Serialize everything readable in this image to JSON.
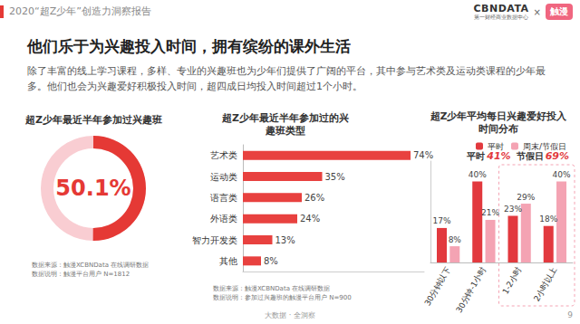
{
  "page": {
    "header": "2020“超Z少年”创造力洞察报告",
    "brand": {
      "name": "CBNDATA",
      "subtitle": "第一财经商业数据中心",
      "separator": "×",
      "partner": "触漫"
    },
    "title": "他们乐于为兴趣投入时间，拥有缤纷的课外生活",
    "paragraph": "除了丰富的线上学习课程，多样、专业的兴趣班也为少年们提供了广阔的平台，其中参与艺术类及运动类课程的少年最多。他们也会为兴趣爱好积极投入时间，超四成日均投入时间超过1个小时。",
    "footer": "大数据 · 全洞察",
    "page_number": "9"
  },
  "chart_data": [
    {
      "type": "gauge",
      "title": "超Z少年最近半年参加过兴趣班",
      "values": [
        50.1
      ],
      "value_labels": [
        "50.1%"
      ],
      "ylim": [
        0,
        100
      ],
      "color": "#e53935",
      "data_labels": true,
      "source": [
        "数据来源：触漫XCBNData 在线调研数据",
        "数据说明：触漫平台用户 N=1812"
      ]
    },
    {
      "type": "bar",
      "orientation": "horizontal",
      "title": "超Z少年最近半年参加过的兴趣班类型",
      "categories": [
        "艺术类",
        "运动类",
        "语言类",
        "外语类",
        "智力开发类",
        "其他"
      ],
      "values": [
        74,
        35,
        26,
        24,
        13,
        8
      ],
      "value_labels": [
        "74%",
        "35%",
        "26%",
        "24%",
        "13%",
        "8%"
      ],
      "xlim": [
        0,
        80
      ],
      "color": "#e8413f",
      "data_labels": true,
      "tick_labels": "y",
      "grid": false,
      "source": [
        "数据来源：触漫XCBNData 在线调研数据",
        "数据说明：参加过兴趣班的触漫平台用户 N=900"
      ]
    },
    {
      "type": "bar",
      "title": "超Z少年平均每日兴趣爱好投入时间分布",
      "categories": [
        "30分钟以下",
        "30分钟-1小时",
        "1-2小时",
        "2小时以上"
      ],
      "series": [
        {
          "name": "平时",
          "color": "#e2393e",
          "values": [
            17,
            40,
            23,
            18
          ],
          "value_labels": [
            "17%",
            "40%",
            "23%",
            "18%"
          ]
        },
        {
          "name": "周末/节假日",
          "color": "#f4a3b3",
          "values": [
            8,
            21,
            29,
            40
          ],
          "value_labels": [
            "8%",
            "21%",
            "29%",
            "40%"
          ]
        }
      ],
      "ylim": [
        0,
        50
      ],
      "legend": "top",
      "data_labels": true,
      "tick_labels": "x",
      "grid": false,
      "annotations": [
        {
          "text": "平时",
          "value_label": "41%"
        },
        {
          "text": "节假日",
          "value_label": "69%"
        }
      ]
    }
  ]
}
